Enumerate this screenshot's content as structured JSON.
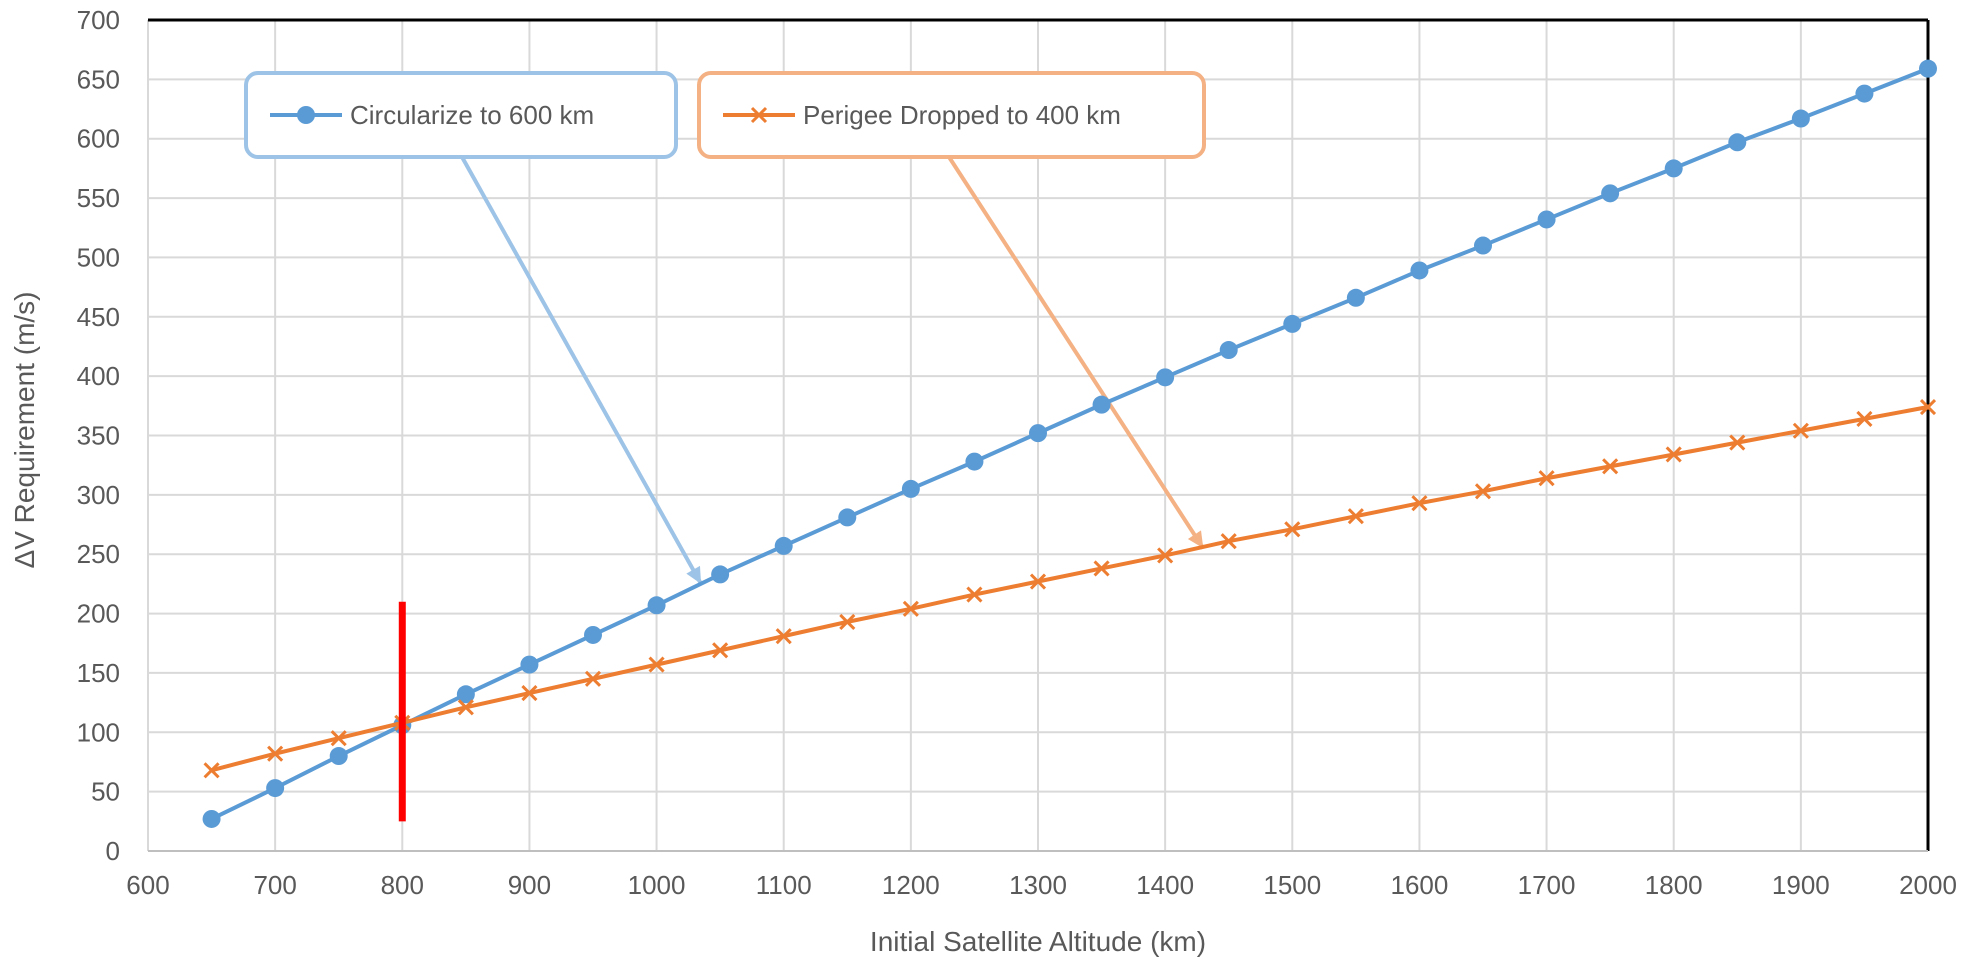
{
  "chart_data": {
    "type": "line",
    "title": "",
    "xlabel": "Initial Satellite Altitude (km)",
    "ylabel": "ΔV Requirement (m/s)",
    "xlim": [
      600,
      2000
    ],
    "ylim": [
      0,
      700
    ],
    "x_ticks": [
      600,
      700,
      800,
      900,
      1000,
      1100,
      1200,
      1300,
      1400,
      1500,
      1600,
      1700,
      1800,
      1900,
      2000
    ],
    "y_ticks": [
      0,
      50,
      100,
      150,
      200,
      250,
      300,
      350,
      400,
      450,
      500,
      550,
      600,
      650,
      700
    ],
    "grid": true,
    "x": [
      650,
      700,
      750,
      800,
      850,
      900,
      950,
      1000,
      1050,
      1100,
      1150,
      1200,
      1250,
      1300,
      1350,
      1400,
      1450,
      1500,
      1550,
      1600,
      1650,
      1700,
      1750,
      1800,
      1850,
      1900,
      1950,
      2000
    ],
    "series": [
      {
        "name": "Circularize to 600 km",
        "color": "#5B9BD5",
        "marker": "circle",
        "values": [
          27,
          53,
          80,
          106,
          132,
          157,
          182,
          207,
          233,
          257,
          281,
          305,
          328,
          352,
          376,
          399,
          422,
          444,
          466,
          489,
          510,
          532,
          554,
          575,
          597,
          617,
          638,
          659
        ]
      },
      {
        "name": "Perigee Dropped to 400 km",
        "color": "#ED7D31",
        "marker": "x",
        "values": [
          68,
          82,
          95,
          108,
          121,
          133,
          145,
          157,
          169,
          181,
          193,
          204,
          216,
          227,
          238,
          249,
          261,
          271,
          282,
          293,
          303,
          314,
          324,
          334,
          344,
          354,
          364,
          374
        ]
      }
    ],
    "annotations": [
      {
        "type": "vertical-marker",
        "x": 800,
        "y_from": 25,
        "y_to": 210,
        "color": "#FF0000"
      }
    ],
    "legend": {
      "placement": "callouts",
      "callouts": [
        {
          "series": 0,
          "points_to_x": 1035,
          "points_to_y": 225
        },
        {
          "series": 1,
          "points_to_x": 1430,
          "points_to_y": 255
        }
      ]
    }
  }
}
